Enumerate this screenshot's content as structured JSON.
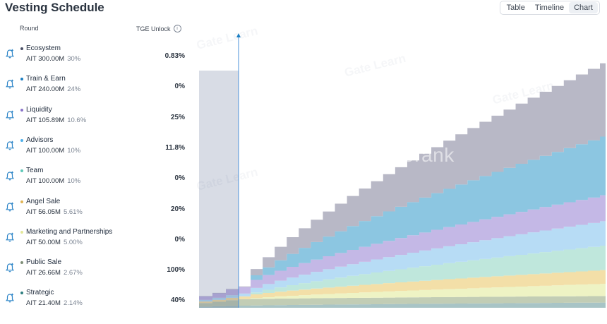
{
  "header": {
    "title": "Vesting Schedule",
    "view_options": [
      {
        "label": "Table",
        "active": false
      },
      {
        "label": "Timeline",
        "active": false
      },
      {
        "label": "Chart",
        "active": true
      }
    ]
  },
  "columns": {
    "round": "Round",
    "tge": "TGE Unlock"
  },
  "rounds": [
    {
      "name": "Ecosystem",
      "amount": "AIT 300.00M",
      "percent": "30%",
      "tge": "0.83%",
      "color": "#4a4f66"
    },
    {
      "name": "Train & Earn",
      "amount": "AIT 240.00M",
      "percent": "24%",
      "tge": "0%",
      "color": "#1d7fc2"
    },
    {
      "name": "Liquidity",
      "amount": "AIT 105.89M",
      "percent": "10.6%",
      "tge": "25%",
      "color": "#8a74c9"
    },
    {
      "name": "Advisors",
      "amount": "AIT 100.00M",
      "percent": "10%",
      "tge": "11.8%",
      "color": "#4fb0ea"
    },
    {
      "name": "Team",
      "amount": "AIT 100.00M",
      "percent": "10%",
      "tge": "0%",
      "color": "#5fc8b8"
    },
    {
      "name": "Angel Sale",
      "amount": "AIT 56.05M",
      "percent": "5.61%",
      "tge": "20%",
      "color": "#e0b455"
    },
    {
      "name": "Marketing and Partnerships",
      "amount": "AIT 50.00M",
      "percent": "5.00%",
      "tge": "0%",
      "color": "#e3e89a"
    },
    {
      "name": "Public Sale",
      "amount": "AIT 26.66M",
      "percent": "2.67%",
      "tge": "100%",
      "color": "#7f8f78"
    },
    {
      "name": "Strategic",
      "amount": "AIT 21.40M",
      "percent": "2.14%",
      "tge": "40%",
      "color": "#2f7f80"
    }
  ],
  "chart_data": {
    "type": "area",
    "stacked": true,
    "step": true,
    "x_labels_shown": false,
    "y_labels_shown": false,
    "tge_marker": true,
    "series": [
      {
        "name": "Strategic",
        "color": "#a8c4c6",
        "total": 21.4,
        "tge": 0.4
      },
      {
        "name": "Public Sale",
        "color": "#c2cdb5",
        "total": 26.66,
        "tge": 1.0
      },
      {
        "name": "Marketing and Partnerships",
        "color": "#eef3c4",
        "total": 50.0,
        "tge": 0.0
      },
      {
        "name": "Angel Sale",
        "color": "#f3dfa8",
        "total": 56.05,
        "tge": 0.2
      },
      {
        "name": "Team",
        "color": "#bfe7dc",
        "total": 100.0,
        "tge": 0.0
      },
      {
        "name": "Advisors",
        "color": "#b7dcf5",
        "total": 100.0,
        "tge": 0.118
      },
      {
        "name": "Liquidity",
        "color": "#c4b8e6",
        "total": 105.89,
        "tge": 0.25
      },
      {
        "name": "Train & Earn",
        "color": "#8cc6e1",
        "total": 240.0,
        "tge": 0.0
      },
      {
        "name": "Ecosystem",
        "color": "#b8b8c6",
        "total": 300.0,
        "tge": 0.0083
      }
    ]
  },
  "watermarks": {
    "brand": "cryptorank",
    "overlay": "Gate Learn"
  },
  "icons": {
    "row_action": "bell-plus-icon",
    "tge_info": "info-icon"
  }
}
